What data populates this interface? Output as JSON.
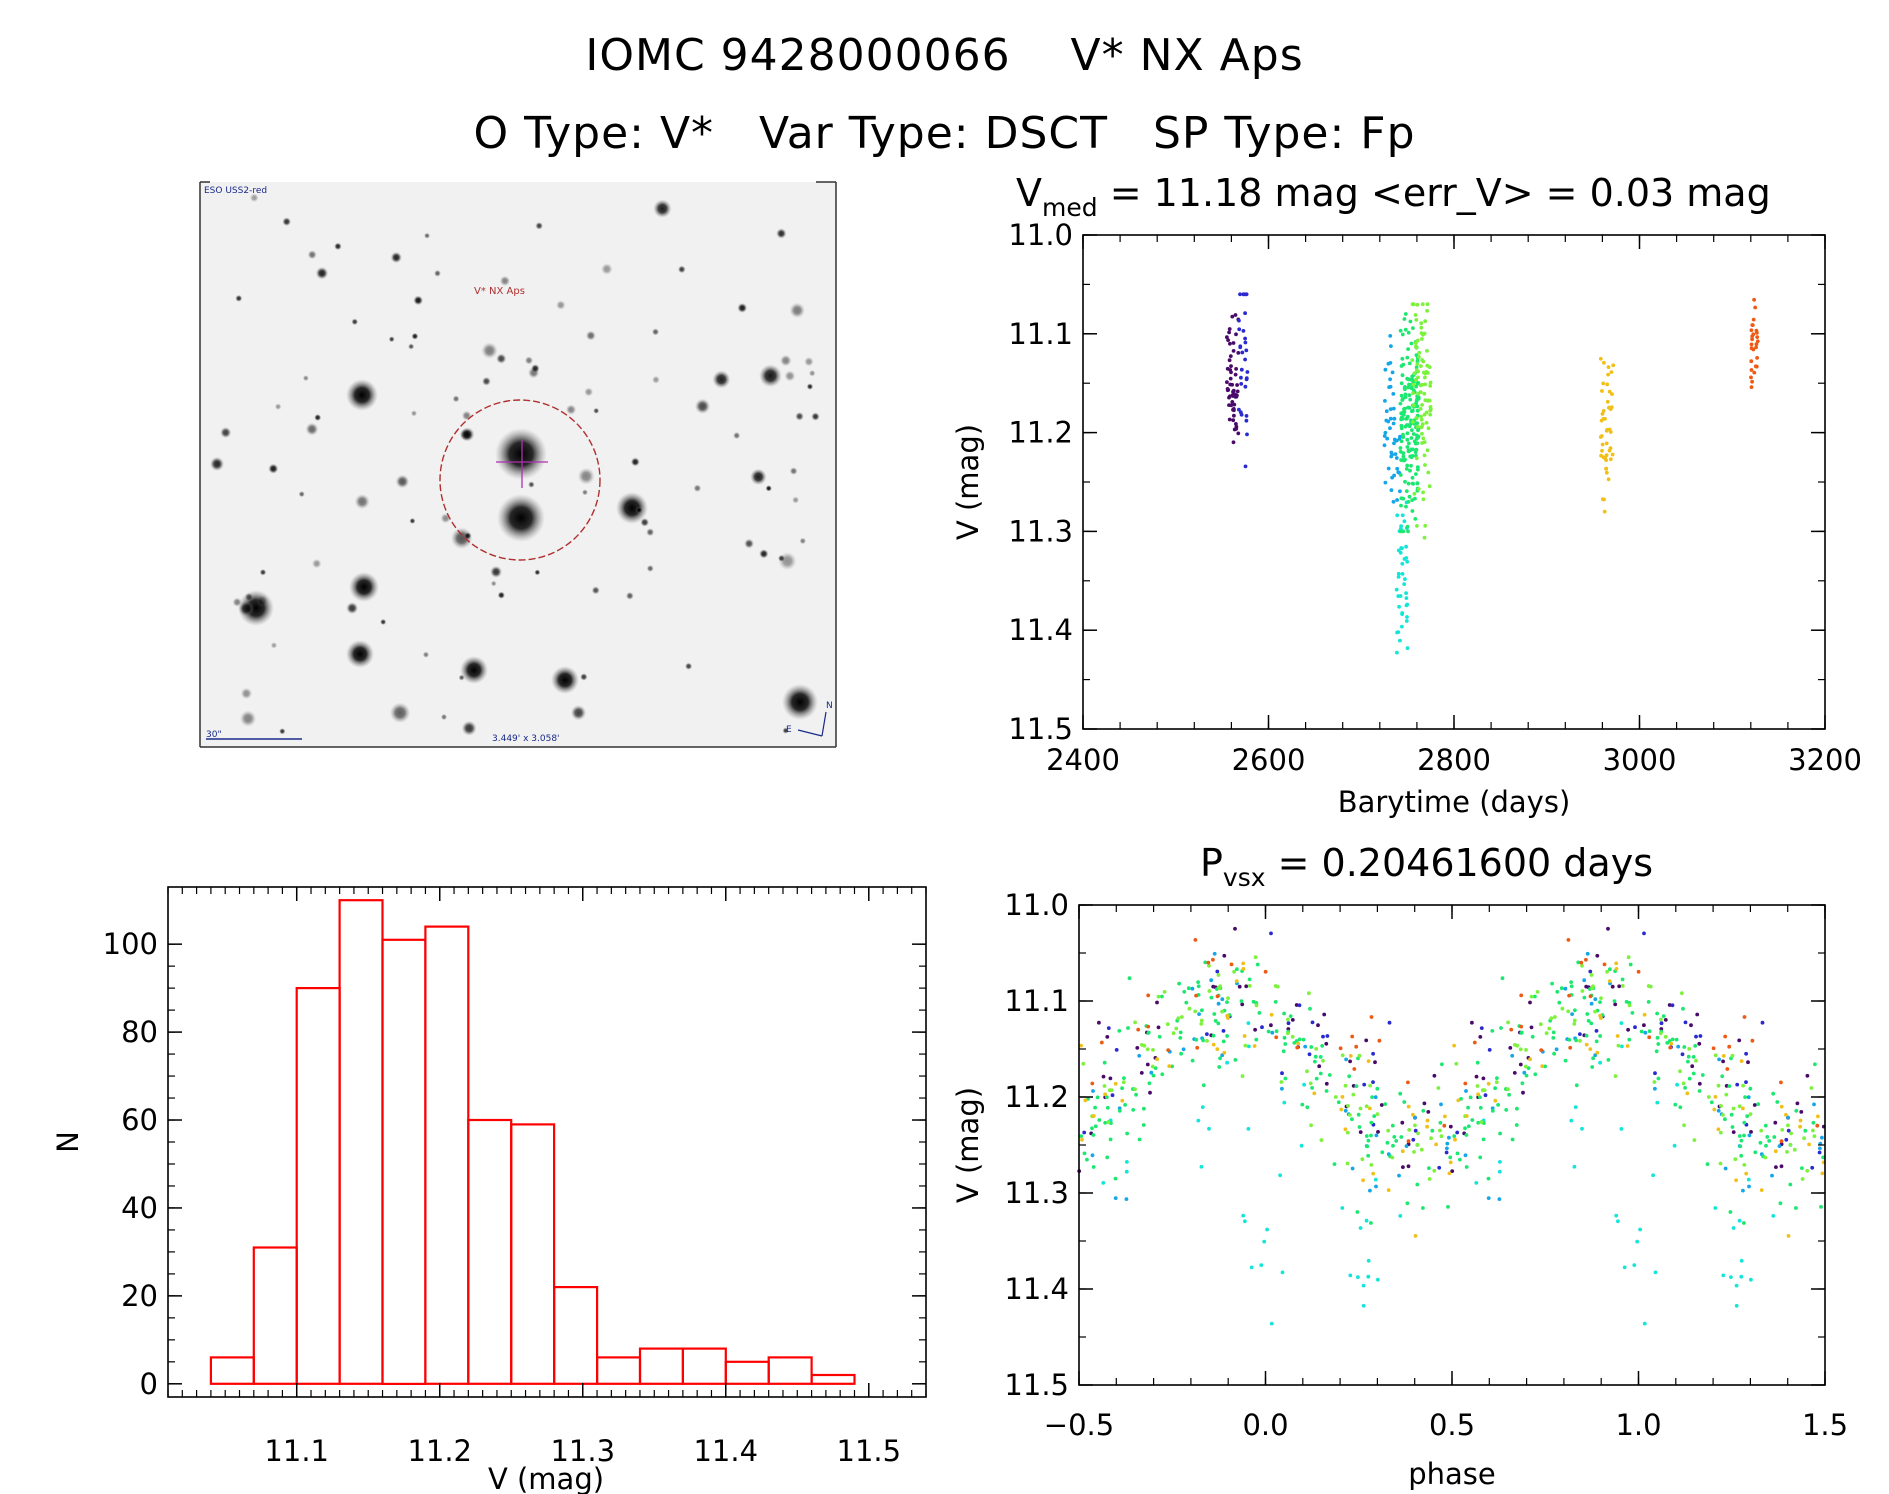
{
  "header": {
    "line1": "IOMC 9428000066    V* NX Aps",
    "line2": "O Type: V*   Var Type: DSCT   SP Type: Fp"
  },
  "finder_chart": {
    "survey_label": "ESO USS2-red",
    "target_label": "V* NX Aps",
    "scale_label": "30\"",
    "field_label": "3.449' x 3.058'",
    "north_label": "N",
    "east_label": "E",
    "image_bg": "#f1f1f1",
    "circle_color": "#b03030"
  },
  "colors": {
    "histogram_stroke": "#ff0000",
    "season_colors": [
      "#4a0a6a",
      "#2a2ad0",
      "#14a6e8",
      "#12e6d8",
      "#1ce870",
      "#7df23c",
      "#f0c018",
      "#ee5a14"
    ]
  },
  "chart_data": [
    {
      "id": "lightcurve",
      "type": "scatter",
      "title_base": "V",
      "title_sub": "med",
      "title_rest": " = 11.18 mag <err_V> = 0.03 mag",
      "xlabel": "Barytime (days)",
      "ylabel": "V (mag)",
      "xlim": [
        2400,
        3200
      ],
      "ylim": [
        11.5,
        11.0
      ],
      "xticks": [
        2400,
        2600,
        2800,
        3000,
        3200
      ],
      "xtick_labels": [
        "2400",
        "2600",
        "2800",
        "3000",
        "3200"
      ],
      "yticks": [
        11.0,
        11.1,
        11.2,
        11.3,
        11.4,
        11.5
      ],
      "ytick_labels": [
        "11.0",
        "11.1",
        "11.2",
        "11.3",
        "11.4",
        "11.5"
      ],
      "seasons": [
        {
          "name": "season-1",
          "color_index": 0,
          "t_start": 2555,
          "t_end": 2568,
          "v_min": 11.06,
          "v_max": 11.22,
          "v_mean": 11.15,
          "n": 55
        },
        {
          "name": "season-2",
          "color_index": 1,
          "t_start": 2568,
          "t_end": 2578,
          "v_min": 11.06,
          "v_max": 11.25,
          "v_mean": 11.13,
          "n": 30
        },
        {
          "name": "season-3",
          "color_index": 2,
          "t_start": 2725,
          "t_end": 2742,
          "v_min": 11.09,
          "v_max": 11.28,
          "v_mean": 11.2,
          "n": 45
        },
        {
          "name": "season-4",
          "color_index": 3,
          "t_start": 2738,
          "t_end": 2750,
          "v_min": 11.27,
          "v_max": 11.47,
          "v_mean": 11.35,
          "n": 40
        },
        {
          "name": "season-5",
          "color_index": 4,
          "t_start": 2742,
          "t_end": 2762,
          "v_min": 11.08,
          "v_max": 11.3,
          "v_mean": 11.19,
          "n": 170
        },
        {
          "name": "season-6",
          "color_index": 5,
          "t_start": 2755,
          "t_end": 2775,
          "v_min": 11.07,
          "v_max": 11.33,
          "v_mean": 11.17,
          "n": 90
        },
        {
          "name": "season-7",
          "color_index": 6,
          "t_start": 2958,
          "t_end": 2972,
          "v_min": 11.1,
          "v_max": 11.28,
          "v_mean": 11.19,
          "n": 45
        },
        {
          "name": "season-8",
          "color_index": 7,
          "t_start": 3120,
          "t_end": 3128,
          "v_min": 11.04,
          "v_max": 11.17,
          "v_mean": 11.11,
          "n": 28
        }
      ]
    },
    {
      "id": "histogram",
      "type": "bar",
      "xlabel": "V (mag)",
      "ylabel": "N",
      "xlim": [
        11.01,
        11.54
      ],
      "ylim": [
        -3,
        113
      ],
      "xticks": [
        11.1,
        11.2,
        11.3,
        11.4,
        11.5
      ],
      "xtick_labels": [
        "11.1",
        "11.2",
        "11.3",
        "11.4",
        "11.5"
      ],
      "yticks": [
        0,
        20,
        40,
        60,
        80,
        100
      ],
      "ytick_labels": [
        "0",
        "20",
        "40",
        "60",
        "80",
        "100"
      ],
      "bin_width": 0.03,
      "bin_left_edges": [
        11.04,
        11.07,
        11.1,
        11.13,
        11.16,
        11.19,
        11.22,
        11.25,
        11.28,
        11.31,
        11.34,
        11.37,
        11.4,
        11.43,
        11.46
      ],
      "values": [
        6,
        31,
        90,
        110,
        101,
        104,
        60,
        59,
        22,
        6,
        8,
        8,
        5,
        6,
        2
      ]
    },
    {
      "id": "phased",
      "type": "scatter",
      "title_base": "P",
      "title_sub": "vsx",
      "title_rest": " = 0.20461600 days",
      "xlabel": "phase",
      "ylabel": "V (mag)",
      "xlim": [
        -0.5,
        1.5
      ],
      "ylim": [
        11.5,
        11.0
      ],
      "xticks": [
        -0.5,
        0.0,
        0.5,
        1.0,
        1.5
      ],
      "xtick_labels": [
        "−0.5",
        "0.0",
        "0.5",
        "1.0",
        "1.5"
      ],
      "yticks": [
        11.0,
        11.1,
        11.2,
        11.3,
        11.4,
        11.5
      ],
      "ytick_labels": [
        "11.0",
        "11.1",
        "11.2",
        "11.3",
        "11.4",
        "11.5"
      ],
      "period_days": 0.204616,
      "curve": {
        "phase_at_max": -0.1,
        "mean_v": 11.17,
        "amplitude": 0.065,
        "scatter": 0.035
      },
      "outlier_groups": [
        {
          "phase": 0.0,
          "v": 11.37,
          "spread": 0.06,
          "n": 12
        },
        {
          "phase": 0.28,
          "v": 11.4,
          "spread": 0.03,
          "n": 10
        }
      ]
    }
  ]
}
